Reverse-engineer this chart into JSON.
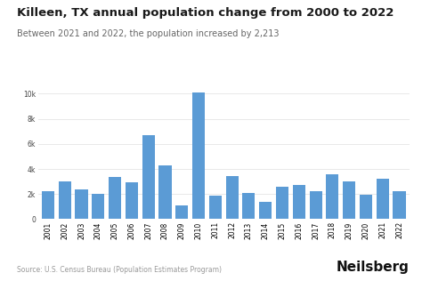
{
  "title": "Killeen, TX annual population change from 2000 to 2022",
  "subtitle": "Between 2021 and 2022, the population increased by 2,213",
  "source": "Source: U.S. Census Bureau (Population Estimates Program)",
  "brand": "Neilsberg",
  "years": [
    2001,
    2002,
    2003,
    2004,
    2005,
    2006,
    2007,
    2008,
    2009,
    2010,
    2011,
    2012,
    2013,
    2014,
    2015,
    2016,
    2017,
    2018,
    2019,
    2020,
    2021,
    2022
  ],
  "values": [
    2200,
    3000,
    2350,
    2050,
    3400,
    2950,
    6700,
    4300,
    1100,
    10100,
    1850,
    3450,
    2100,
    1350,
    2600,
    2700,
    2250,
    3550,
    3000,
    1950,
    3250,
    2213
  ],
  "bar_color": "#5b9bd5",
  "background_color": "#ffffff",
  "title_fontsize": 9.5,
  "subtitle_fontsize": 7,
  "source_fontsize": 5.5,
  "brand_fontsize": 11,
  "tick_fontsize": 5.5,
  "ytick_labels": [
    "0",
    "2k",
    "4k",
    "6k",
    "8k",
    "10k"
  ],
  "ytick_values": [
    0,
    2000,
    4000,
    6000,
    8000,
    10000
  ],
  "ylim": [
    0,
    11200
  ],
  "grid_color": "#e5e5e5",
  "title_color": "#1a1a1a",
  "subtitle_color": "#666666",
  "source_color": "#999999",
  "brand_color": "#111111"
}
